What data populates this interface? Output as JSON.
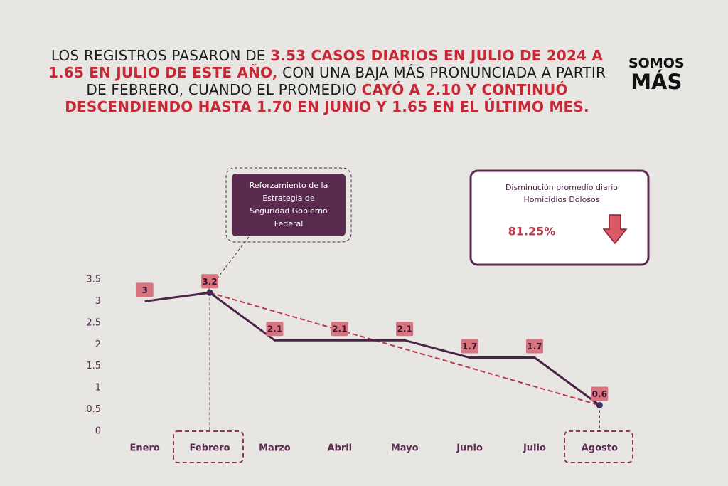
{
  "header": [
    {
      "text": "LOS REGISTROS PASARON DE ",
      "highlight": false
    },
    {
      "text": "3.53 CASOS DIARIOS EN JULIO DE 2024 A 1.65 EN JULIO DE ESTE AÑO,",
      "highlight": true
    },
    {
      "text": " CON UNA BAJA MÁS PRONUNCIADA A PARTIR DE FEBRERO, CUANDO EL PROMEDIO ",
      "highlight": false
    },
    {
      "text": "CAYÓ A 2.10 Y CONTINUÓ DESCENDIENDO HASTA 1.70 EN JUNIO Y 1.65 EN EL ÚLTIMO MES.",
      "highlight": true
    }
  ],
  "logo": [
    "SOMOS",
    "MÁS"
  ],
  "callout": [
    "Reforzamiento de la",
    "Estrategia de",
    "Seguridad  Gobierno",
    "Federal"
  ],
  "kpi": {
    "title": [
      "Disminución promedio diario",
      "Homicidios Dolosos"
    ],
    "value": 81.25,
    "value_label": "81.25%"
  },
  "chart_data": {
    "type": "line",
    "categories": [
      "Enero",
      "Febrero",
      "Marzo",
      "Abril",
      "Mayo",
      "Junio",
      "Julio",
      "Agosto"
    ],
    "values": [
      3,
      3.2,
      2.1,
      2.1,
      2.1,
      1.7,
      1.7,
      0.6
    ],
    "color": "#4b2346",
    "label_color": "#d9737f",
    "trend_color": "#b83a4b",
    "ylim": [
      0,
      3.5
    ],
    "yticks": [
      0,
      0.5,
      1,
      1.5,
      2,
      2.5,
      3,
      3.5
    ]
  }
}
